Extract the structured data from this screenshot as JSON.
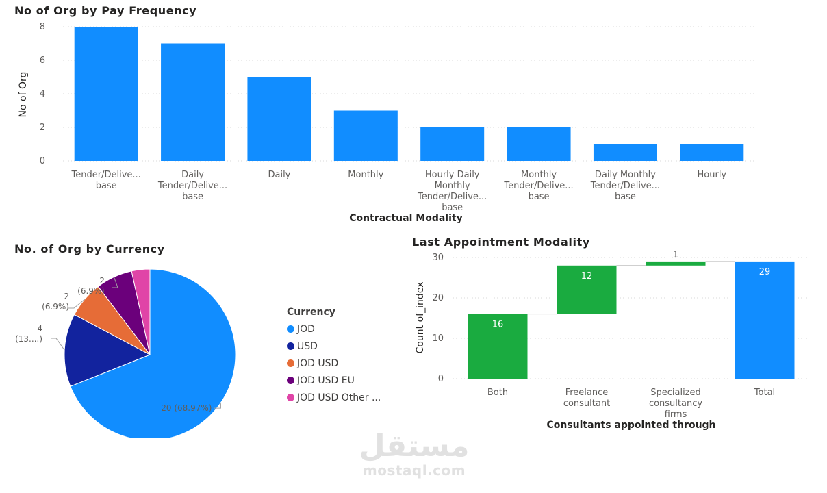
{
  "chart_data": [
    {
      "type": "bar",
      "title": "No of Org by Pay Frequency",
      "xlabel": "Contractual Modality",
      "ylabel": "No of Org",
      "ylim": [
        0,
        8
      ],
      "yticks": [
        0,
        2,
        4,
        6,
        8
      ],
      "grid": true,
      "color": "#118dff",
      "categories": [
        [
          "Tender/Delive...",
          "base"
        ],
        [
          "Daily",
          "Tender/Delive...",
          "base"
        ],
        [
          "Daily"
        ],
        [
          "Monthly"
        ],
        [
          "Hourly Daily",
          "Monthly",
          "Tender/Delive...",
          "base"
        ],
        [
          "Monthly",
          "Tender/Delive...",
          "base"
        ],
        [
          "Daily Monthly",
          "Tender/Delive...",
          "base"
        ],
        [
          "Hourly"
        ]
      ],
      "values": [
        8,
        7,
        5,
        3,
        2,
        2,
        1,
        1
      ]
    },
    {
      "type": "pie",
      "title": "No. of Org by Currency",
      "legend_title": "Currency",
      "legend_position": "right",
      "slices": [
        {
          "label": "JOD",
          "value": 20,
          "data_label": "20 (68.97%)",
          "color": "#118dff"
        },
        {
          "label": "USD",
          "value": 4,
          "data_label_lines": [
            "4",
            "(13....)"
          ],
          "color": "#12239e"
        },
        {
          "label": "JOD USD",
          "value": 2,
          "data_label_lines": [
            "2",
            "(6.9%)"
          ],
          "color": "#e66c37"
        },
        {
          "label": "JOD USD EU",
          "value": 2,
          "data_label_lines": [
            "2",
            "(6.9%)"
          ],
          "color": "#6b007b"
        },
        {
          "label": "JOD USD Other ...",
          "value": 1,
          "color": "#e044a7"
        }
      ]
    },
    {
      "type": "waterfall",
      "title": "Last Appointment Modality",
      "xlabel": "Consultants appointed through",
      "ylabel": "Count of_index",
      "ylim": [
        0,
        30
      ],
      "yticks": [
        0,
        10,
        20,
        30
      ],
      "grid": true,
      "steps": [
        {
          "label": [
            "Both"
          ],
          "value": 16,
          "data_label": "16",
          "color": "#1aab40"
        },
        {
          "label": [
            "Freelance",
            "consultant"
          ],
          "value": 12,
          "data_label": "12",
          "color": "#1aab40"
        },
        {
          "label": [
            "Specialized",
            "consultancy",
            "firms"
          ],
          "value": 1,
          "data_label": "1",
          "color": "#1aab40"
        },
        {
          "label": [
            "Total"
          ],
          "value": 29,
          "data_label": "29",
          "color": "#118dff",
          "is_total": true
        }
      ]
    }
  ],
  "watermark": {
    "arabic": "مستقل",
    "latin": "mostaql.com"
  }
}
